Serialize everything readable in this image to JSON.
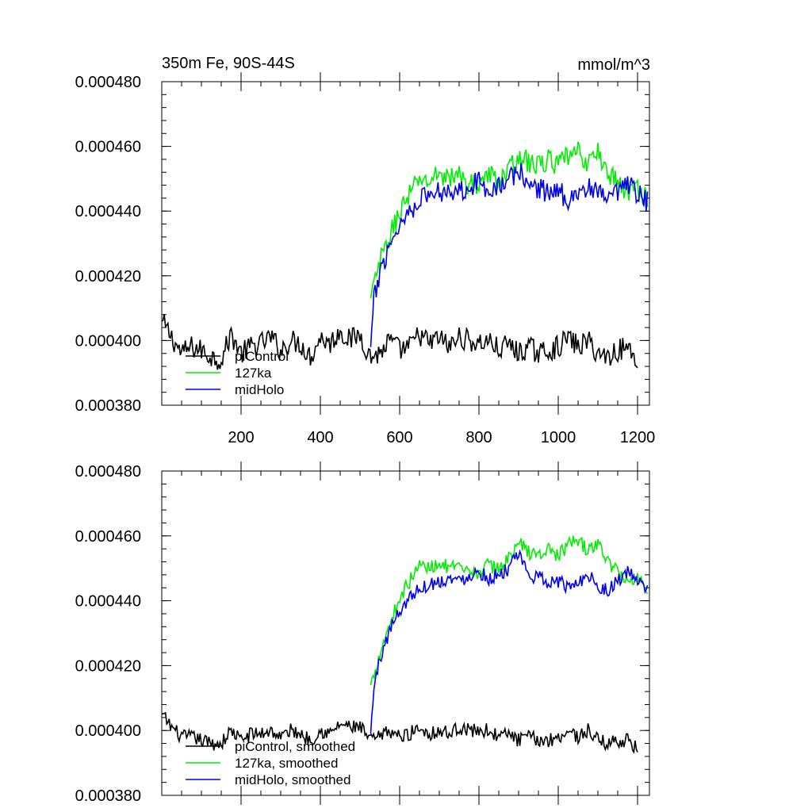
{
  "chart_data": [
    {
      "type": "line",
      "title_left": "350m Fe, 90S-44S",
      "title_right": "mmol/m^3",
      "xlim": [
        0,
        1230
      ],
      "ylim": [
        0.00038,
        0.00048
      ],
      "x_ticks": [
        200,
        400,
        600,
        800,
        1000,
        1200
      ],
      "x_tick_labels": [
        "200",
        "400",
        "600",
        "800",
        "1000",
        "1200"
      ],
      "y_ticks": [
        0.00038,
        0.0004,
        0.00042,
        0.00044,
        0.00046,
        0.00048
      ],
      "y_tick_labels": [
        "0.000380",
        "0.000400",
        "0.000420",
        "0.000440",
        "0.000460",
        "0.000480"
      ],
      "series": [
        {
          "name": "piControl",
          "color": "#000000",
          "x": [
            0,
            25,
            50,
            75,
            100,
            125,
            150,
            175,
            200,
            225,
            250,
            275,
            300,
            325,
            350,
            375,
            400,
            425,
            450,
            475,
            500,
            525,
            550,
            575,
            600,
            625,
            650,
            675,
            700,
            725,
            750,
            775,
            800,
            825,
            850,
            875,
            900,
            925,
            950,
            975,
            1000,
            1025,
            1050,
            1075,
            1100,
            1125,
            1150,
            1175,
            1200
          ],
          "y": [
            0.000406,
            0.000401,
            0.000396,
            0.000398,
            0.000397,
            0.000395,
            0.000394,
            0.000402,
            0.000396,
            0.000398,
            0.000399,
            0.000401,
            0.000397,
            0.0004,
            0.000399,
            0.000395,
            0.000401,
            0.000399,
            0.000403,
            0.0004,
            0.000402,
            0.000395,
            0.000396,
            0.0004,
            0.000397,
            0.000398,
            0.000402,
            0.000399,
            0.000401,
            0.000398,
            0.000401,
            0.0004,
            0.000399,
            0.0004,
            0.000397,
            0.000399,
            0.000396,
            0.000398,
            0.000396,
            0.000397,
            0.000398,
            0.000401,
            0.000398,
            0.0004,
            0.000396,
            0.000395,
            0.000397,
            0.000398,
            0.000394
          ]
        },
        {
          "name": "127ka",
          "color": "#00ee00",
          "x": [
            527,
            550,
            575,
            600,
            625,
            650,
            675,
            700,
            725,
            750,
            775,
            800,
            825,
            850,
            875,
            900,
            925,
            950,
            975,
            1000,
            1025,
            1050,
            1075,
            1100,
            1125,
            1150,
            1175,
            1200,
            1225
          ],
          "y": [
            0.000413,
            0.000424,
            0.000432,
            0.00044,
            0.000445,
            0.00045,
            0.000449,
            0.000452,
            0.00045,
            0.000451,
            0.000448,
            0.000449,
            0.000451,
            0.00045,
            0.000452,
            0.000457,
            0.000455,
            0.000454,
            0.000456,
            0.000454,
            0.000457,
            0.000458,
            0.000455,
            0.000458,
            0.000452,
            0.000449,
            0.000446,
            0.000447,
            0.000444
          ]
        },
        {
          "name": "midHolo",
          "color": "#0000ee",
          "x": [
            527,
            535,
            550,
            575,
            600,
            625,
            650,
            675,
            700,
            725,
            750,
            775,
            800,
            825,
            850,
            875,
            900,
            925,
            950,
            975,
            1000,
            1025,
            1050,
            1075,
            1100,
            1125,
            1150,
            1175,
            1200,
            1225
          ],
          "y": [
            0.000398,
            0.000412,
            0.000421,
            0.00043,
            0.000436,
            0.00044,
            0.000444,
            0.000445,
            0.000446,
            0.000447,
            0.000446,
            0.000448,
            0.000449,
            0.000447,
            0.000448,
            0.000449,
            0.000453,
            0.000448,
            0.000447,
            0.000446,
            0.000446,
            0.000444,
            0.000446,
            0.000447,
            0.000445,
            0.000444,
            0.000445,
            0.000448,
            0.000445,
            0.000443
          ]
        }
      ],
      "legend_placement": "bottom-left"
    },
    {
      "type": "line",
      "xlim": [
        0,
        1230
      ],
      "ylim": [
        0.00038,
        0.00048
      ],
      "x_ticks": [
        200,
        400,
        600,
        800,
        1000,
        1200
      ],
      "y_ticks": [
        0.00038,
        0.0004,
        0.00042,
        0.00044,
        0.00046,
        0.00048
      ],
      "y_tick_labels": [
        "0.000380",
        "0.000400",
        "0.000420",
        "0.000440",
        "0.000460",
        "0.000480"
      ],
      "series": [
        {
          "name": "piControl, smoothed",
          "color": "#000000",
          "x": [
            0,
            25,
            50,
            75,
            100,
            125,
            150,
            175,
            200,
            225,
            250,
            275,
            300,
            325,
            350,
            375,
            400,
            425,
            450,
            475,
            500,
            525,
            550,
            575,
            600,
            625,
            650,
            675,
            700,
            725,
            750,
            775,
            800,
            825,
            850,
            875,
            900,
            925,
            950,
            975,
            1000,
            1025,
            1050,
            1075,
            1100,
            1125,
            1150,
            1175,
            1200
          ],
          "y": [
            0.000405,
            0.000401,
            0.000398,
            0.000398,
            0.000397,
            0.000396,
            0.000396,
            0.0004,
            0.000397,
            0.000399,
            0.000399,
            0.0004,
            0.000398,
            0.0004,
            0.000399,
            0.000397,
            0.0004,
            0.000399,
            0.000402,
            0.000401,
            0.000401,
            0.000397,
            0.000398,
            0.0004,
            0.000398,
            0.000399,
            0.000401,
            0.000399,
            0.0004,
            0.000399,
            0.000401,
            0.0004,
            0.0004,
            0.0004,
            0.000398,
            0.000399,
            0.000397,
            0.000398,
            0.000397,
            0.000397,
            0.000398,
            0.0004,
            0.000398,
            0.0004,
            0.000397,
            0.000396,
            0.000397,
            0.000397,
            0.000394
          ]
        },
        {
          "name": "127ka, smoothed",
          "color": "#00ee00",
          "x": [
            527,
            550,
            575,
            600,
            625,
            650,
            675,
            700,
            725,
            750,
            775,
            800,
            825,
            850,
            875,
            900,
            925,
            950,
            975,
            1000,
            1025,
            1050,
            1075,
            1100,
            1125,
            1150,
            1175,
            1200,
            1225
          ],
          "y": [
            0.000414,
            0.000424,
            0.000433,
            0.000441,
            0.000446,
            0.000451,
            0.00045,
            0.000452,
            0.00045,
            0.00045,
            0.000448,
            0.000449,
            0.000451,
            0.00045,
            0.000453,
            0.000458,
            0.000455,
            0.000454,
            0.000456,
            0.000454,
            0.000457,
            0.000459,
            0.000455,
            0.000458,
            0.000452,
            0.000449,
            0.000446,
            0.000447,
            0.000444
          ]
        },
        {
          "name": "midHolo, smoothed",
          "color": "#0000ee",
          "x": [
            527,
            535,
            550,
            575,
            600,
            625,
            650,
            675,
            700,
            725,
            750,
            775,
            800,
            825,
            850,
            875,
            900,
            925,
            950,
            975,
            1000,
            1025,
            1050,
            1075,
            1100,
            1125,
            1150,
            1175,
            1200,
            1225
          ],
          "y": [
            0.000399,
            0.000413,
            0.000422,
            0.000431,
            0.000437,
            0.000441,
            0.000444,
            0.000445,
            0.000446,
            0.000447,
            0.000446,
            0.000448,
            0.000449,
            0.000447,
            0.000448,
            0.00045,
            0.000454,
            0.000448,
            0.000447,
            0.000446,
            0.000446,
            0.000444,
            0.000446,
            0.000448,
            0.000445,
            0.000443,
            0.000446,
            0.000449,
            0.000446,
            0.000443
          ]
        }
      ],
      "legend_placement": "bottom-left"
    }
  ]
}
